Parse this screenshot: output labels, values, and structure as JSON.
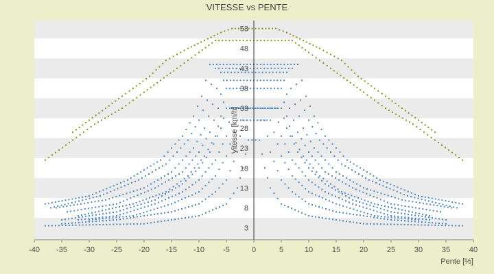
{
  "chart_data": {
    "type": "scatter",
    "title": "VITESSE vs PENTE",
    "xlabel": "Pente [%]",
    "ylabel": "Vitesse [km/h]",
    "xlim": [
      -40,
      40
    ],
    "ylim": [
      0,
      55
    ],
    "x_ticks": [
      -40,
      -35,
      -30,
      -25,
      -20,
      -15,
      -10,
      -5,
      0,
      5,
      10,
      15,
      20,
      25,
      30,
      35,
      40
    ],
    "y_ticks": [
      3,
      8,
      13,
      18,
      23,
      28,
      33,
      38,
      43,
      48,
      53
    ],
    "grid": "horizontal alternating bands",
    "legend": "none",
    "series": [
      {
        "color": "#4a86c5",
        "curves": [
          {
            "k": 20,
            "points": [
              [
                -38,
                3.5
              ],
              [
                -20,
                4
              ],
              [
                -10,
                6
              ],
              [
                -5,
                9
              ],
              [
                -3,
                13
              ],
              [
                -2,
                18
              ],
              [
                -1,
                25
              ],
              [
                1,
                25
              ],
              [
                2,
                18
              ],
              [
                3,
                13
              ],
              [
                5,
                9
              ],
              [
                10,
                6
              ],
              [
                20,
                4
              ],
              [
                38,
                3.5
              ]
            ]
          },
          {
            "k": 40,
            "points": [
              [
                -35,
                4
              ],
              [
                -25,
                5
              ],
              [
                -15,
                7
              ],
              [
                -10,
                9
              ],
              [
                -7,
                12
              ],
              [
                -5,
                15
              ],
              [
                -3,
                22
              ],
              [
                -2,
                30
              ],
              [
                2,
                30
              ],
              [
                3,
                22
              ],
              [
                5,
                15
              ],
              [
                7,
                12
              ],
              [
                10,
                9
              ],
              [
                15,
                7
              ],
              [
                25,
                5
              ],
              [
                35,
                4
              ]
            ]
          },
          {
            "k": 60,
            "points": [
              [
                -30,
                5
              ],
              [
                -22,
                6
              ],
              [
                -15,
                9
              ],
              [
                -10,
                12
              ],
              [
                -7,
                16
              ],
              [
                -5,
                21
              ],
              [
                -3,
                30
              ],
              [
                3,
                30
              ],
              [
                5,
                21
              ],
              [
                7,
                16
              ],
              [
                10,
                12
              ],
              [
                15,
                9
              ],
              [
                22,
                6
              ],
              [
                30,
                5
              ]
            ]
          },
          {
            "k": 80,
            "points": [
              [
                -32,
                5
              ],
              [
                -25,
                6
              ],
              [
                -18,
                9
              ],
              [
                -13,
                12
              ],
              [
                -10,
                15
              ],
              [
                -7,
                20
              ],
              [
                -5,
                26
              ],
              [
                -4,
                33
              ],
              [
                4,
                33
              ],
              [
                5,
                26
              ],
              [
                7,
                20
              ],
              [
                10,
                15
              ],
              [
                13,
                12
              ],
              [
                18,
                9
              ],
              [
                25,
                6
              ],
              [
                32,
                5
              ]
            ]
          },
          {
            "k": 100,
            "points": [
              [
                -35,
                5
              ],
              [
                -25,
                7
              ],
              [
                -18,
                10
              ],
              [
                -13,
                14
              ],
              [
                -10,
                18
              ],
              [
                -8,
                22
              ],
              [
                -6,
                28
              ],
              [
                -5,
                33
              ],
              [
                5,
                33
              ],
              [
                6,
                28
              ],
              [
                8,
                22
              ],
              [
                10,
                18
              ],
              [
                13,
                14
              ],
              [
                18,
                10
              ],
              [
                25,
                7
              ],
              [
                35,
                5
              ]
            ]
          },
          {
            "k": 120,
            "points": [
              [
                -32,
                6
              ],
              [
                -22,
                9
              ],
              [
                -16,
                12
              ],
              [
                -12,
                16
              ],
              [
                -9,
                21
              ],
              [
                -7,
                26
              ],
              [
                -6,
                31
              ],
              [
                -5,
                38
              ],
              [
                5,
                38
              ],
              [
                6,
                31
              ],
              [
                7,
                26
              ],
              [
                9,
                21
              ],
              [
                12,
                16
              ],
              [
                16,
                12
              ],
              [
                22,
                9
              ],
              [
                32,
                6
              ]
            ]
          },
          {
            "k": 140,
            "points": [
              [
                -34,
                7
              ],
              [
                -25,
                9
              ],
              [
                -18,
                13
              ],
              [
                -13,
                17
              ],
              [
                -10,
                22
              ],
              [
                -8,
                27
              ],
              [
                -6.5,
                33
              ],
              [
                -5.5,
                40
              ],
              [
                5.5,
                40
              ],
              [
                6.5,
                33
              ],
              [
                8,
                27
              ],
              [
                10,
                22
              ],
              [
                13,
                17
              ],
              [
                18,
                13
              ],
              [
                25,
                9
              ],
              [
                34,
                7
              ]
            ]
          },
          {
            "k": 160,
            "points": [
              [
                -36,
                8
              ],
              [
                -27,
                10
              ],
              [
                -20,
                13
              ],
              [
                -15,
                17
              ],
              [
                -11,
                23
              ],
              [
                -9,
                28
              ],
              [
                -7.5,
                34
              ],
              [
                -6,
                42
              ],
              [
                6,
                42
              ],
              [
                7.5,
                34
              ],
              [
                9,
                28
              ],
              [
                11,
                23
              ],
              [
                15,
                17
              ],
              [
                20,
                13
              ],
              [
                27,
                10
              ],
              [
                36,
                8
              ]
            ]
          },
          {
            "k": 180,
            "points": [
              [
                -37,
                8
              ],
              [
                -28,
                11
              ],
              [
                -21,
                15
              ],
              [
                -16,
                19
              ],
              [
                -12,
                25
              ],
              [
                -10,
                30
              ],
              [
                -8.5,
                35
              ],
              [
                -7,
                43
              ],
              [
                7,
                43
              ],
              [
                8.5,
                35
              ],
              [
                10,
                30
              ],
              [
                12,
                25
              ],
              [
                16,
                19
              ],
              [
                21,
                15
              ],
              [
                28,
                11
              ],
              [
                37,
                8
              ]
            ]
          },
          {
            "k": 200,
            "points": [
              [
                -38,
                9
              ],
              [
                -30,
                11
              ],
              [
                -23,
                15
              ],
              [
                -17,
                20
              ],
              [
                -13,
                26
              ],
              [
                -11,
                31
              ],
              [
                -9.5,
                36
              ],
              [
                -8,
                44
              ],
              [
                8,
                44
              ],
              [
                9.5,
                36
              ],
              [
                11,
                31
              ],
              [
                13,
                26
              ],
              [
                17,
                20
              ],
              [
                23,
                15
              ],
              [
                30,
                11
              ],
              [
                38,
                9
              ]
            ]
          }
        ]
      },
      {
        "color": "#8a8f1e",
        "curves": [
          {
            "k": 220,
            "points": [
              [
                -33,
                27
              ],
              [
                -27,
                33
              ],
              [
                -24,
                36
              ],
              [
                -22,
                38
              ],
              [
                -19,
                41
              ],
              [
                -16,
                45
              ],
              [
                -12,
                48
              ],
              [
                -9,
                50
              ],
              [
                -6,
                52
              ],
              [
                -4,
                53
              ],
              [
                4,
                53
              ],
              [
                6,
                52
              ],
              [
                9,
                50
              ],
              [
                12,
                48
              ],
              [
                16,
                45
              ],
              [
                19,
                41
              ],
              [
                22,
                38
              ],
              [
                24,
                36
              ],
              [
                27,
                33
              ],
              [
                33,
                27
              ]
            ]
          },
          {
            "k": 240,
            "points": [
              [
                -38,
                20
              ],
              [
                -33,
                25
              ],
              [
                -29,
                29
              ],
              [
                -24,
                33
              ],
              [
                -20,
                37
              ],
              [
                -17,
                40
              ],
              [
                -14,
                43
              ],
              [
                -10,
                47
              ],
              [
                -7,
                50
              ],
              [
                7,
                50
              ],
              [
                10,
                47
              ],
              [
                14,
                43
              ],
              [
                17,
                40
              ],
              [
                20,
                37
              ],
              [
                24,
                33
              ],
              [
                29,
                29
              ],
              [
                33,
                25
              ],
              [
                38,
                20
              ]
            ]
          }
        ]
      }
    ]
  }
}
